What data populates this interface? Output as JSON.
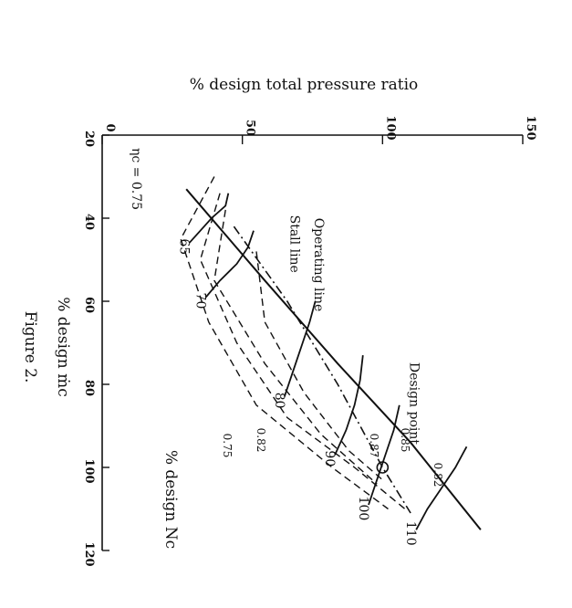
{
  "figure_caption": "Figure 2.",
  "chart_data": {
    "type": "line",
    "title": "",
    "xlabel": "% design ṁc",
    "ylabel": "% design total pressure ratio",
    "x_ticks": [
      "20",
      "40",
      "60",
      "80",
      "100",
      "120"
    ],
    "y_ticks": [
      "0",
      "50",
      "100",
      "150"
    ],
    "xlim": [
      20,
      120
    ],
    "ylim": [
      0,
      150
    ],
    "grid": false,
    "speed_lines_label": "% design Nc",
    "speed_lines": [
      {
        "label": "65",
        "x": [
          34,
          37,
          40,
          43,
          46
        ],
        "y": [
          45,
          44,
          39,
          35,
          31
        ]
      },
      {
        "label": "70",
        "x": [
          43,
          47,
          51,
          55,
          59
        ],
        "y": [
          54,
          52,
          48,
          42,
          37
        ]
      },
      {
        "label": "80",
        "x": [
          60,
          65,
          71,
          77,
          83
        ],
        "y": [
          76,
          74,
          71,
          68,
          65
        ]
      },
      {
        "label": "90",
        "x": [
          73,
          79,
          85,
          91,
          97
        ],
        "y": [
          93,
          92,
          90,
          87,
          83
        ]
      },
      {
        "label": "100",
        "x": [
          85,
          91,
          97,
          103,
          109
        ],
        "y": [
          106,
          104,
          101,
          98,
          95
        ]
      },
      {
        "label": "110",
        "x": [
          95,
          100,
          105,
          110,
          115
        ],
        "y": [
          130,
          126,
          121,
          116,
          112
        ]
      }
    ],
    "stall_line": {
      "label": "Stall line",
      "x": [
        33,
        55,
        75,
        94,
        115
      ],
      "y": [
        30,
        58,
        84,
        110,
        135
      ]
    },
    "operating_line": {
      "label": "Operating line",
      "x": [
        42,
        60,
        80,
        100,
        111
      ],
      "y": [
        47,
        66,
        84,
        100,
        110
      ]
    },
    "design_point": {
      "label": "Design point",
      "x": 100,
      "y": 100
    },
    "efficiency_contours": [
      {
        "label": "ηc = 0.75",
        "x": [
          30,
          45,
          65,
          85,
          100,
          110
        ],
        "y": [
          40,
          28,
          38,
          55,
          82,
          102
        ]
      },
      {
        "label": "0.82",
        "x": [
          34,
          50,
          70,
          88,
          100,
          110
        ],
        "y": [
          42,
          35,
          48,
          66,
          90,
          108
        ]
      },
      {
        "label": "0.85",
        "x": [
          38,
          55,
          75,
          92,
          104
        ],
        "y": [
          44,
          40,
          58,
          78,
          98
        ]
      },
      {
        "label": "0.87",
        "x": [
          48,
          65,
          82,
          96,
          103
        ],
        "y": [
          55,
          58,
          72,
          88,
          100
        ]
      }
    ],
    "efficiency_labels": [
      "0.75",
      "0.82",
      "0.85",
      "0.87",
      "0.82"
    ]
  }
}
